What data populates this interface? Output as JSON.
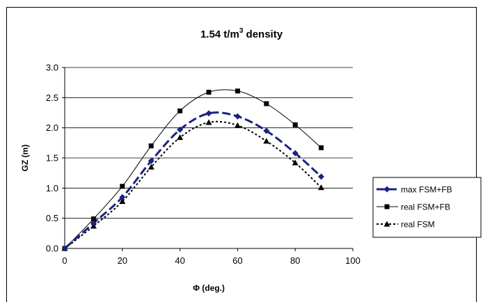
{
  "chart_data": {
    "type": "line",
    "title": "1.54 t/m",
    "title_superscript": "3",
    "title_suffix": " density",
    "xlabel": "Φ (deg.)",
    "ylabel": "GZ (m)",
    "xlim": [
      0,
      100
    ],
    "ylim": [
      0,
      3.0
    ],
    "x_ticks": [
      0,
      20,
      40,
      60,
      80,
      100
    ],
    "y_ticks": [
      0.0,
      0.5,
      1.0,
      1.5,
      2.0,
      2.5,
      3.0
    ],
    "x_tick_labels": [
      "0",
      "20",
      "40",
      "60",
      "80",
      "100"
    ],
    "y_tick_labels": [
      "0.0",
      "0.5",
      "1.0",
      "1.5",
      "2.0",
      "2.5",
      "3.0"
    ],
    "grid": "horizontal",
    "legend_position": "right",
    "series": [
      {
        "name": "max FSM+FB",
        "color": "#1a237e",
        "line_style": "dashed-thick",
        "marker": "diamond",
        "x": [
          0,
          10,
          20,
          30,
          40,
          50,
          60,
          70,
          80,
          89
        ],
        "y": [
          0.0,
          0.42,
          0.85,
          1.45,
          1.97,
          2.24,
          2.19,
          1.95,
          1.58,
          1.19
        ]
      },
      {
        "name": "real FSM+FB",
        "color": "#000000",
        "line_style": "solid",
        "marker": "square",
        "x": [
          0,
          10,
          20,
          30,
          40,
          50,
          60,
          70,
          80,
          89
        ],
        "y": [
          0.0,
          0.49,
          1.03,
          1.7,
          2.28,
          2.59,
          2.61,
          2.4,
          2.05,
          1.67
        ]
      },
      {
        "name": "real FSM",
        "color": "#000000",
        "line_style": "dotted",
        "marker": "triangle",
        "x": [
          0,
          10,
          20,
          30,
          40,
          50,
          60,
          70,
          80,
          89
        ],
        "y": [
          0.0,
          0.37,
          0.78,
          1.35,
          1.84,
          2.09,
          2.04,
          1.78,
          1.42,
          1.01
        ]
      }
    ]
  }
}
